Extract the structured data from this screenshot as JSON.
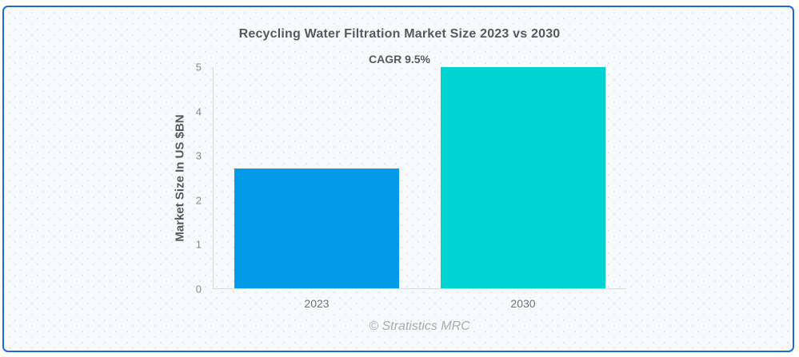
{
  "card": {
    "border_color": "#1f6bd3"
  },
  "chart_data": {
    "type": "bar",
    "title": "Recycling Water Filtration Market Size 2023 vs 2030",
    "subtitle": "CAGR 9.5%",
    "categories": [
      "2023",
      "2030"
    ],
    "values": [
      2.7,
      5
    ],
    "bar_colors": [
      "#029be9",
      "#00d2d2"
    ],
    "xlabel": "",
    "ylabel": "Market Size In US $BN",
    "ylim": [
      0,
      5
    ],
    "yticks": [
      0,
      1,
      2,
      3,
      4,
      5
    ],
    "grid": false,
    "legend": "none"
  },
  "footer": {
    "attribution": "© Stratistics MRC"
  }
}
